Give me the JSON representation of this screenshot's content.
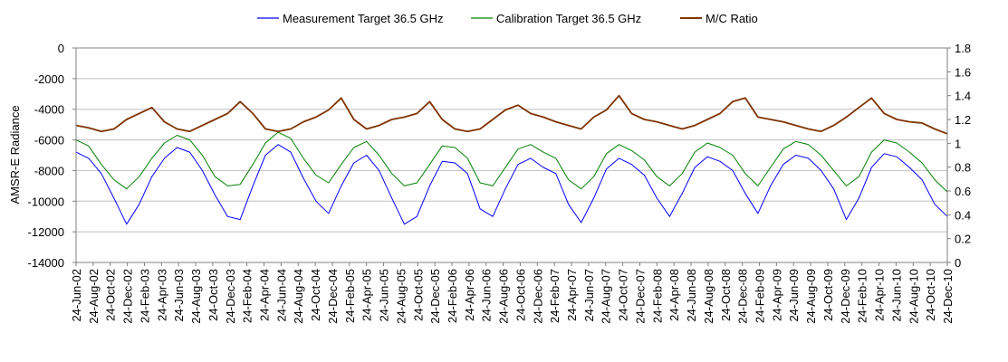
{
  "chart_data": {
    "type": "line",
    "title": "",
    "ylabel": "AMSR-E Radiance",
    "y2label": "",
    "xlabel": "",
    "ylim": [
      -14000,
      0
    ],
    "y2lim": [
      0,
      1.8
    ],
    "yticks": [
      "0",
      "-2000",
      "-4000",
      "-6000",
      "-8000",
      "-10000",
      "-12000",
      "-14000"
    ],
    "y2ticks": [
      "1.8",
      "1.6",
      "1.4",
      "1.2",
      "1",
      "0.8",
      "0.6",
      "0.4",
      "0.2",
      "0"
    ],
    "xticks": [
      "24-Jun-02",
      "24-Aug-02",
      "24-Oct-02",
      "24-Dec-02",
      "24-Feb-03",
      "24-Apr-03",
      "24-Jun-03",
      "24-Aug-03",
      "24-Oct-03",
      "24-Dec-03",
      "24-Feb-04",
      "24-Apr-04",
      "24-Jun-04",
      "24-Aug-04",
      "24-Oct-04",
      "24-Dec-04",
      "24-Feb-05",
      "24-Apr-05",
      "24-Jun-05",
      "24-Aug-05",
      "24-Oct-05",
      "24-Dec-05",
      "24-Feb-06",
      "24-Apr-06",
      "24-Jun-06",
      "24-Aug-06",
      "24-Oct-06",
      "24-Dec-06",
      "24-Feb-07",
      "24-Apr-07",
      "24-Jun-07",
      "24-Aug-07",
      "24-Oct-07",
      "24-Dec-07",
      "24-Feb-08",
      "24-Apr-08",
      "24-Jun-08",
      "24-Aug-08",
      "24-Oct-08",
      "24-Dec-08",
      "24-Feb-09",
      "24-Apr-09",
      "24-Jun-09",
      "24-Aug-09",
      "24-Oct-09",
      "24-Dec-09",
      "24-Feb-10",
      "24-Apr-10",
      "24-Jun-10",
      "24-Aug-10",
      "24-Oct-10",
      "24-Dec-10"
    ],
    "grid": true,
    "legend_position": "top",
    "series": [
      {
        "name": "Measurement Target 36.5 GHz",
        "axis": "left",
        "color": "#0000ff",
        "values": [
          -6800,
          -7200,
          -8200,
          -9800,
          -11500,
          -10200,
          -8400,
          -7200,
          -6500,
          -6800,
          -8000,
          -9600,
          -11000,
          -11200,
          -9000,
          -7000,
          -6300,
          -6800,
          -8500,
          -10000,
          -10800,
          -9000,
          -7500,
          -7000,
          -8000,
          -9800,
          -11500,
          -11000,
          -9000,
          -7400,
          -7500,
          -8200,
          -10500,
          -11000,
          -9200,
          -7600,
          -7200,
          -7800,
          -8200,
          -10200,
          -11400,
          -9800,
          -7900,
          -7200,
          -7600,
          -8300,
          -9800,
          -11000,
          -9500,
          -7800,
          -7100,
          -7400,
          -8000,
          -9500,
          -10800,
          -9000,
          -7600,
          -7000,
          -7200,
          -8000,
          -9200,
          -11200,
          -9800,
          -7800,
          -6900,
          -7100,
          -7800,
          -8600,
          -10200,
          -11000
        ]
      },
      {
        "name": "Calibration Target 36.5 GHz",
        "axis": "left",
        "color": "#008000",
        "values": [
          -6000,
          -6400,
          -7600,
          -8600,
          -9200,
          -8400,
          -7200,
          -6200,
          -5700,
          -6000,
          -7000,
          -8400,
          -9000,
          -8900,
          -7600,
          -6200,
          -5500,
          -5900,
          -7200,
          -8300,
          -8800,
          -7600,
          -6500,
          -6100,
          -7000,
          -8200,
          -9000,
          -8800,
          -7600,
          -6400,
          -6500,
          -7200,
          -8800,
          -9000,
          -7800,
          -6600,
          -6300,
          -6800,
          -7200,
          -8600,
          -9200,
          -8400,
          -6900,
          -6300,
          -6700,
          -7300,
          -8400,
          -9000,
          -8200,
          -6800,
          -6200,
          -6500,
          -7000,
          -8200,
          -9000,
          -7800,
          -6600,
          -6100,
          -6300,
          -7000,
          -8000,
          -9000,
          -8400,
          -6800,
          -6000,
          -6200,
          -6800,
          -7500,
          -8600,
          -9400
        ]
      },
      {
        "name": "M/C Ratio",
        "axis": "right",
        "color": "#7f3300",
        "values": [
          1.15,
          1.13,
          1.1,
          1.12,
          1.2,
          1.25,
          1.3,
          1.18,
          1.12,
          1.1,
          1.15,
          1.2,
          1.25,
          1.35,
          1.25,
          1.12,
          1.1,
          1.12,
          1.18,
          1.22,
          1.28,
          1.38,
          1.2,
          1.12,
          1.15,
          1.2,
          1.22,
          1.25,
          1.35,
          1.2,
          1.12,
          1.1,
          1.12,
          1.2,
          1.28,
          1.32,
          1.25,
          1.22,
          1.18,
          1.15,
          1.12,
          1.22,
          1.28,
          1.4,
          1.25,
          1.2,
          1.18,
          1.15,
          1.12,
          1.15,
          1.2,
          1.25,
          1.35,
          1.38,
          1.22,
          1.2,
          1.18,
          1.15,
          1.12,
          1.1,
          1.15,
          1.22,
          1.3,
          1.38,
          1.25,
          1.2,
          1.18,
          1.17,
          1.12,
          1.08
        ]
      }
    ]
  }
}
